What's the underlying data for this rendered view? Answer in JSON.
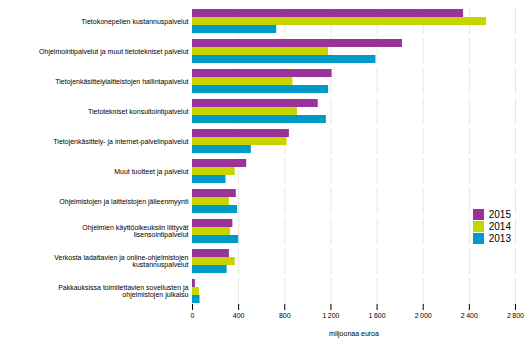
{
  "chart_data": {
    "type": "bar",
    "orientation": "horizontal",
    "categories": [
      "Tietokonepelien kustannuspalvelut",
      "Ohjelmointipalvelut ja muut tietotekniset palvelut",
      "Tietojenkäsittelylaitteistojen hallintapalvelut",
      "Tietotekniset konsultointipalvelut",
      "Tietojenkäsittely- ja internet-palvelinpalvelut",
      "Muut tuotteet ja palvelut",
      "Ohjelmistojen ja laitteistojen jälleenmyynti",
      "Ohjelmien käyttöoikeuksiin liittyvät\nlisensointipalvelut",
      "Verkosta ladattavien ja online-ohjelmistojen\nkustannuspalvelut",
      "Pakkauksissa toimitettavien sovellusten ja\nohjelmistojen julkaisu"
    ],
    "series": [
      {
        "name": "2015",
        "color": "#993399",
        "values": [
          2350,
          1820,
          1210,
          1090,
          840,
          470,
          380,
          350,
          320,
          25
        ]
      },
      {
        "name": "2014",
        "color": "#c8d400",
        "values": [
          2550,
          1180,
          870,
          910,
          820,
          370,
          320,
          330,
          370,
          60
        ]
      },
      {
        "name": "2013",
        "color": "#009ac7",
        "values": [
          730,
          1590,
          1180,
          1160,
          510,
          290,
          390,
          400,
          300,
          65
        ]
      }
    ],
    "xlabel": "miljoonaa euroa",
    "xlim": [
      0,
      2800
    ],
    "xticks": [
      0,
      400,
      800,
      {
        "value": 1200,
        "label": "1 200"
      },
      {
        "value": 1600,
        "label": "1 600"
      },
      {
        "value": 2000,
        "label": "2 000"
      },
      {
        "value": 2400,
        "label": "2 400"
      },
      {
        "value": 2800,
        "label": "2 800"
      }
    ],
    "grid": true,
    "legend": "lower right"
  }
}
